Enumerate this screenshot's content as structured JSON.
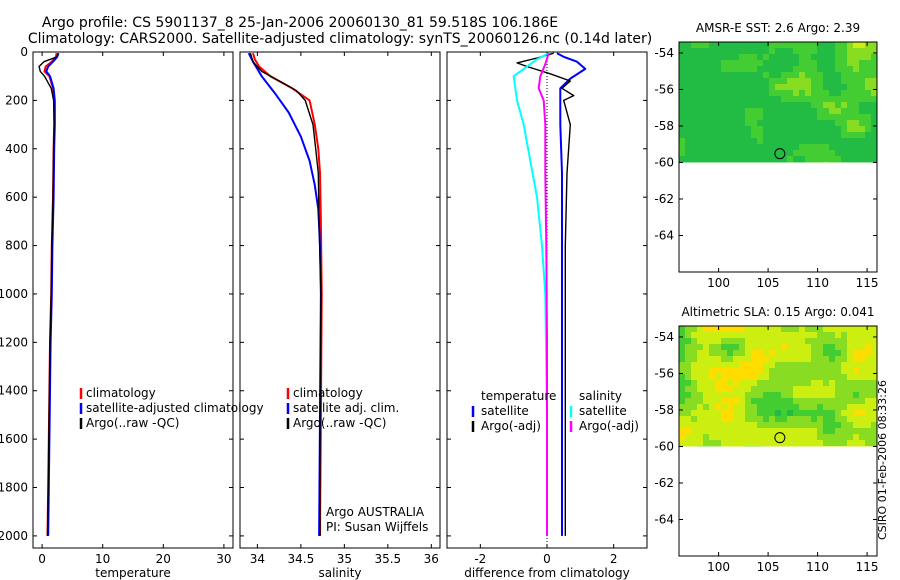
{
  "figure": {
    "title_line1": "Argo profile: CS 5901137_8 25-Jan-2006 20060130_81 59.518S 106.186E",
    "title_line2": "Climatology: CARS2000. Satellite-adjusted climatology: synTS_20060126.nc (0.14d later)",
    "stamp": "CSIRO 01-Feb-2006 08:33:26"
  },
  "chart_data": [
    {
      "id": "temperature",
      "type": "line",
      "xlabel": "temperature",
      "xlim": [
        -1.5,
        31.5
      ],
      "xticks": [
        0,
        10,
        20,
        30
      ],
      "ylim": [
        0,
        2050
      ],
      "yticks": [
        0,
        200,
        400,
        600,
        800,
        1000,
        1200,
        1400,
        1600,
        1800,
        2000
      ],
      "yreversed": true,
      "show_yticklabels": true,
      "legend": {
        "position": "lower-right",
        "entries": [
          {
            "label": "climatology",
            "color": "#ff0000"
          },
          {
            "label": "satellite-adjusted climatology",
            "color": "#0000ff"
          },
          {
            "label": "Argo(..raw -QC)",
            "color": "#000000"
          }
        ]
      },
      "series": [
        {
          "name": "climatology",
          "color": "#ff0000",
          "width": 2,
          "points": [
            [
              2.4,
              5
            ],
            [
              2.3,
              20
            ],
            [
              1.6,
              40
            ],
            [
              0.6,
              60
            ],
            [
              0.4,
              80
            ],
            [
              1.2,
              100
            ],
            [
              1.8,
              150
            ],
            [
              2.0,
              200
            ],
            [
              2.0,
              300
            ],
            [
              1.9,
              400
            ],
            [
              1.8,
              600
            ],
            [
              1.6,
              800
            ],
            [
              1.5,
              1000
            ],
            [
              1.3,
              1200
            ],
            [
              1.2,
              1400
            ],
            [
              1.1,
              1600
            ],
            [
              1.0,
              1800
            ],
            [
              0.9,
              2000
            ]
          ]
        },
        {
          "name": "satellite-adjusted climatology",
          "color": "#0000ff",
          "width": 2,
          "points": [
            [
              2.7,
              5
            ],
            [
              2.5,
              20
            ],
            [
              1.8,
              40
            ],
            [
              1.0,
              60
            ],
            [
              0.7,
              80
            ],
            [
              1.3,
              100
            ],
            [
              1.9,
              150
            ],
            [
              2.1,
              200
            ],
            [
              2.1,
              300
            ],
            [
              2.0,
              400
            ],
            [
              1.9,
              600
            ],
            [
              1.7,
              800
            ],
            [
              1.6,
              1000
            ],
            [
              1.4,
              1200
            ],
            [
              1.3,
              1400
            ],
            [
              1.2,
              1600
            ],
            [
              1.1,
              1800
            ],
            [
              1.0,
              2000
            ]
          ]
        },
        {
          "name": "Argo(..raw -QC)",
          "color": "#000000",
          "width": 1.4,
          "points": [
            [
              2.6,
              5
            ],
            [
              2.5,
              20
            ],
            [
              0.3,
              40
            ],
            [
              -0.5,
              60
            ],
            [
              -0.3,
              80
            ],
            [
              0.4,
              100
            ],
            [
              1.5,
              150
            ],
            [
              1.9,
              200
            ],
            [
              2.0,
              300
            ],
            [
              1.9,
              400
            ],
            [
              1.8,
              600
            ],
            [
              1.6,
              800
            ],
            [
              1.5,
              1000
            ],
            [
              1.3,
              1200
            ],
            [
              1.2,
              1400
            ],
            [
              1.1,
              1600
            ],
            [
              1.0,
              1800
            ],
            [
              0.9,
              2000
            ]
          ]
        }
      ]
    },
    {
      "id": "salinity",
      "type": "line",
      "xlabel": "salinity",
      "xlim": [
        33.8,
        36.1
      ],
      "xticks": [
        34,
        34.5,
        35,
        35.5,
        36
      ],
      "ylim": [
        0,
        2050
      ],
      "yticks": [
        0,
        200,
        400,
        600,
        800,
        1000,
        1200,
        1400,
        1600,
        1800,
        2000
      ],
      "yreversed": true,
      "show_yticklabels": false,
      "legend": {
        "position": "lower-right",
        "entries": [
          {
            "label": "climatology",
            "color": "#ff0000"
          },
          {
            "label": "satellite adj. clim.",
            "color": "#0000ff"
          },
          {
            "label": "Argo(..raw -QC)",
            "color": "#000000"
          }
        ]
      },
      "annotation": {
        "line1": "Argo AUSTRALIA",
        "line2": "PI: Susan Wijffels"
      },
      "series": [
        {
          "name": "climatology",
          "color": "#ff0000",
          "width": 2,
          "points": [
            [
              33.95,
              5
            ],
            [
              33.97,
              30
            ],
            [
              34.02,
              60
            ],
            [
              34.15,
              100
            ],
            [
              34.4,
              150
            ],
            [
              34.6,
              200
            ],
            [
              34.66,
              300
            ],
            [
              34.7,
              400
            ],
            [
              34.72,
              500
            ],
            [
              34.73,
              700
            ],
            [
              34.74,
              1000
            ],
            [
              34.73,
              1500
            ],
            [
              34.72,
              2000
            ]
          ]
        },
        {
          "name": "satellite adj. clim.",
          "color": "#0000ff",
          "width": 2,
          "points": [
            [
              33.9,
              5
            ],
            [
              33.95,
              40
            ],
            [
              34.05,
              100
            ],
            [
              34.2,
              170
            ],
            [
              34.36,
              250
            ],
            [
              34.5,
              350
            ],
            [
              34.6,
              450
            ],
            [
              34.66,
              550
            ],
            [
              34.7,
              650
            ],
            [
              34.72,
              800
            ],
            [
              34.73,
              1000
            ],
            [
              34.72,
              1500
            ],
            [
              34.71,
              2000
            ]
          ]
        },
        {
          "name": "Argo(..raw -QC)",
          "color": "#000000",
          "width": 1.4,
          "points": [
            [
              33.92,
              5
            ],
            [
              33.95,
              40
            ],
            [
              34.05,
              80
            ],
            [
              34.25,
              120
            ],
            [
              34.45,
              160
            ],
            [
              34.55,
              200
            ],
            [
              34.64,
              300
            ],
            [
              34.67,
              400
            ],
            [
              34.7,
              500
            ],
            [
              34.71,
              700
            ],
            [
              34.73,
              1000
            ],
            [
              34.72,
              1500
            ],
            [
              34.72,
              2000
            ]
          ]
        }
      ]
    },
    {
      "id": "difference",
      "type": "line",
      "xlabel": "difference from climatology",
      "xlim": [
        -3.0,
        3.0
      ],
      "xticks": [
        -2,
        0,
        2
      ],
      "ylim": [
        0,
        2050
      ],
      "yticks": [
        0,
        200,
        400,
        600,
        800,
        1000,
        1200,
        1400,
        1600,
        1800,
        2000
      ],
      "yreversed": true,
      "show_yticklabels": false,
      "zero_line": true,
      "legend_groups": [
        {
          "title": "temperature",
          "entries": [
            {
              "label": "satellite",
              "color": "#0000ff"
            },
            {
              "label": "Argo(-adj)",
              "color": "#000000"
            }
          ]
        },
        {
          "title": "salinity",
          "entries": [
            {
              "label": "satellite",
              "color": "#00ffff"
            },
            {
              "label": "Argo(-adj)",
              "color": "#ff00ff"
            }
          ]
        }
      ],
      "series": [
        {
          "name": "temperature satellite",
          "color": "#0000ff",
          "width": 2,
          "points": [
            [
              0.3,
              5
            ],
            [
              0.5,
              20
            ],
            [
              0.9,
              40
            ],
            [
              1.15,
              70
            ],
            [
              0.7,
              110
            ],
            [
              0.4,
              150
            ],
            [
              0.4,
              300
            ],
            [
              0.45,
              500
            ],
            [
              0.45,
              800
            ],
            [
              0.45,
              1200
            ],
            [
              0.45,
              1600
            ],
            [
              0.45,
              2000
            ]
          ]
        },
        {
          "name": "temperature Argo(-adj)",
          "color": "#000000",
          "width": 1.4,
          "points": [
            [
              0.2,
              5
            ],
            [
              -0.3,
              25
            ],
            [
              -0.9,
              45
            ],
            [
              -0.6,
              60
            ],
            [
              0.1,
              90
            ],
            [
              0.7,
              120
            ],
            [
              0.45,
              150
            ],
            [
              0.8,
              180
            ],
            [
              0.5,
              200
            ],
            [
              0.7,
              300
            ],
            [
              0.6,
              500
            ],
            [
              0.55,
              800
            ],
            [
              0.55,
              1200
            ],
            [
              0.55,
              1600
            ],
            [
              0.55,
              2000
            ]
          ]
        },
        {
          "name": "salinity satellite",
          "color": "#00ffff",
          "width": 2,
          "points": [
            [
              0.05,
              5
            ],
            [
              -0.3,
              30
            ],
            [
              -1.0,
              100
            ],
            [
              -0.9,
              200
            ],
            [
              -0.7,
              300
            ],
            [
              -0.5,
              450
            ],
            [
              -0.3,
              600
            ],
            [
              -0.15,
              800
            ],
            [
              -0.05,
              1000
            ],
            [
              0.0,
              1500
            ],
            [
              0.0,
              2000
            ]
          ]
        },
        {
          "name": "salinity Argo(-adj)",
          "color": "#ff00ff",
          "width": 2,
          "points": [
            [
              0.05,
              5
            ],
            [
              -0.05,
              50
            ],
            [
              -0.2,
              100
            ],
            [
              -0.25,
              150
            ],
            [
              -0.1,
              200
            ],
            [
              -0.05,
              300
            ],
            [
              -0.05,
              500
            ],
            [
              -0.02,
              800
            ],
            [
              0.0,
              1200
            ],
            [
              0.0,
              2000
            ]
          ]
        }
      ]
    },
    {
      "id": "sst_map",
      "type": "heatmap",
      "title": "AMSR-E SST: 2.6 Argo: 2.39",
      "xlim": [
        96,
        116
      ],
      "ylim": [
        -66,
        -53.4
      ],
      "xticks": [
        100,
        105,
        110,
        115
      ],
      "yticks": [
        -54,
        -56,
        -58,
        -60,
        -62,
        -64
      ],
      "data_lat_range": [
        -60,
        -53.4
      ],
      "argo_position": {
        "lon": 106.186,
        "lat": -59.518
      },
      "palette": [
        "#22bb44",
        "#44cc33",
        "#88dd22",
        "#ccee11",
        "#ffdd00",
        "#ffaa22"
      ],
      "colors_note": "green cold, yellow/orange warm",
      "base": 1,
      "gradient": 0.25,
      "cells_seed": 7
    },
    {
      "id": "sla_map",
      "type": "heatmap",
      "title": "Altimetric SLA: 0.15 Argo: 0.041",
      "xlim": [
        96,
        116
      ],
      "ylim": [
        -66,
        -53.4
      ],
      "xticks": [
        100,
        105,
        110,
        115
      ],
      "yticks": [
        -54,
        -56,
        -58,
        -60,
        -62,
        -64
      ],
      "data_lat_range": [
        -60,
        -53.4
      ],
      "argo_position": {
        "lon": 106.186,
        "lat": -59.518
      },
      "palette": [
        "#22bb44",
        "#44cc33",
        "#88dd22",
        "#ccee11",
        "#ffdd00",
        "#ffaa22"
      ],
      "base": 3,
      "gradient": 0.0,
      "cells_seed": 23
    }
  ]
}
